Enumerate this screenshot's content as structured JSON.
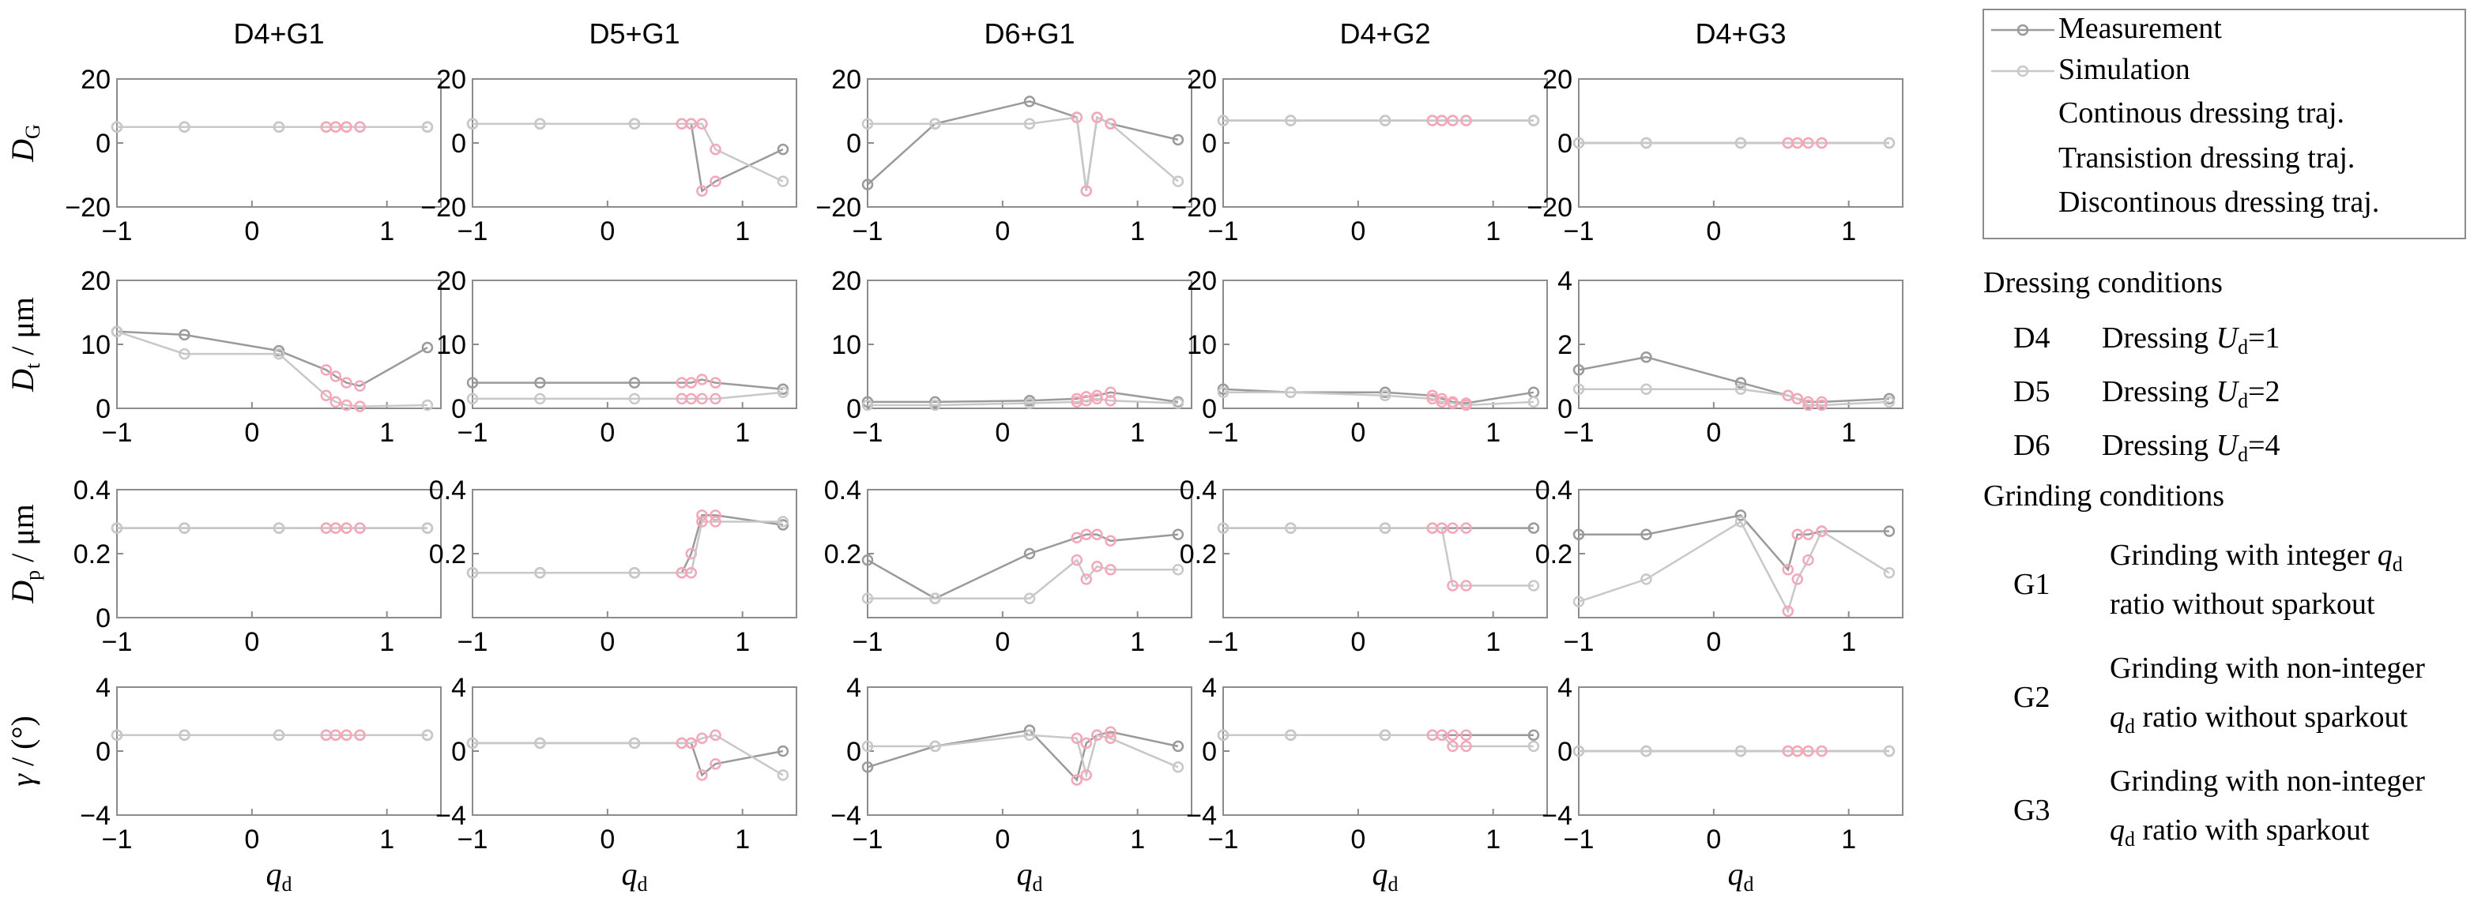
{
  "colors": {
    "measurement": "#9a9a9a",
    "simulation": "#c8c8c8",
    "sim_marker": "#f4a7b9",
    "axis": "#8c8c8c"
  },
  "column_titles": [
    "D4+G1",
    "D5+G1",
    "D6+G1",
    "D4+G2",
    "D4+G3"
  ],
  "row_labels": [
    {
      "main": "D",
      "sub": "G",
      "unit": ""
    },
    {
      "main": "D",
      "sub": "t",
      "unit": " / μm"
    },
    {
      "main": "D",
      "sub": "p",
      "unit": " / μm"
    },
    {
      "main": "γ",
      "sub": "",
      "unit": " / (°)"
    }
  ],
  "xlabel": {
    "main": "q",
    "sub": "d"
  },
  "xticks": [
    -1,
    0,
    1
  ],
  "x_range": [
    -1,
    1.4
  ],
  "legend": {
    "items": [
      "Measurement",
      "Simulation",
      "Continous dressing traj.",
      "Transistion dressing traj.",
      "Discontinous dressing traj."
    ],
    "dressing_heading": "Dressing conditions",
    "dressing": [
      {
        "code": "D4",
        "text": "Dressing ",
        "var": "U",
        "sub": "d",
        "value": "=1"
      },
      {
        "code": "D5",
        "text": "Dressing ",
        "var": "U",
        "sub": "d",
        "value": "=2"
      },
      {
        "code": "D6",
        "text": "Dressing ",
        "var": "U",
        "sub": "d",
        "value": "=4"
      }
    ],
    "grinding_heading": "Grinding conditions",
    "grinding": [
      {
        "code": "G1",
        "line1": "Grinding with integer q",
        "line1_sub": "d",
        "line2": "ratio without sparkout",
        "line2_sub": ""
      },
      {
        "code": "G2",
        "line1": "Grinding with non-integer",
        "line1_sub": "",
        "line2": "q",
        "line2_sub": "d",
        "line2_rest": " ratio without sparkout"
      },
      {
        "code": "G3",
        "line1": "Grinding with non-integer",
        "line1_sub": "",
        "line2": "q",
        "line2_sub": "d",
        "line2_rest": " ratio with sparkout"
      }
    ]
  },
  "chart_data": [
    {
      "type": "line",
      "row": 0,
      "col": 0,
      "ylim": [
        -20,
        20
      ],
      "yticks": [
        -20,
        0,
        20
      ],
      "series": [
        {
          "x": [
            -1,
            -0.5,
            0.2,
            0.55,
            0.62,
            0.7,
            0.8,
            1.3
          ],
          "y": [
            5,
            5,
            5,
            5,
            5,
            5,
            5,
            5
          ]
        },
        {
          "x": [
            -1,
            -0.5,
            0.2,
            0.55,
            0.62,
            0.7,
            0.8,
            1.3
          ],
          "y": [
            5,
            5,
            5,
            5,
            5,
            5,
            5,
            5
          ]
        }
      ]
    },
    {
      "type": "line",
      "row": 0,
      "col": 1,
      "ylim": [
        -20,
        20
      ],
      "yticks": [
        -20,
        0,
        20
      ],
      "series": [
        {
          "x": [
            -1,
            -0.5,
            0.2,
            0.55,
            0.62,
            0.7,
            0.8,
            1.3
          ],
          "y": [
            6,
            6,
            6,
            6,
            6,
            -15,
            -12,
            -2
          ]
        },
        {
          "x": [
            -1,
            -0.5,
            0.2,
            0.55,
            0.62,
            0.7,
            0.8,
            1.3
          ],
          "y": [
            6,
            6,
            6,
            6,
            6,
            6,
            -2,
            -12
          ]
        }
      ]
    },
    {
      "type": "line",
      "row": 0,
      "col": 2,
      "ylim": [
        -20,
        20
      ],
      "yticks": [
        -20,
        0,
        20
      ],
      "series": [
        {
          "x": [
            -1,
            -0.5,
            0.2,
            0.55,
            0.62,
            0.7,
            0.8,
            1.3
          ],
          "y": [
            -13,
            6,
            13,
            8,
            -15,
            8,
            6,
            1
          ]
        },
        {
          "x": [
            -1,
            -0.5,
            0.2,
            0.55,
            0.62,
            0.7,
            0.8,
            1.3
          ],
          "y": [
            6,
            6,
            6,
            8,
            -15,
            8,
            6,
            -12
          ]
        }
      ]
    },
    {
      "type": "line",
      "row": 0,
      "col": 3,
      "ylim": [
        -20,
        20
      ],
      "yticks": [
        -20,
        0,
        20
      ],
      "series": [
        {
          "x": [
            -1,
            -0.5,
            0.2,
            0.55,
            0.62,
            0.7,
            0.8,
            1.3
          ],
          "y": [
            7,
            7,
            7,
            7,
            7,
            7,
            7,
            7
          ]
        },
        {
          "x": [
            -1,
            -0.5,
            0.2,
            0.55,
            0.62,
            0.7,
            0.8,
            1.3
          ],
          "y": [
            7,
            7,
            7,
            7,
            7,
            7,
            7,
            7
          ]
        }
      ]
    },
    {
      "type": "line",
      "row": 0,
      "col": 4,
      "ylim": [
        -20,
        20
      ],
      "yticks": [
        -20,
        0,
        20
      ],
      "series": [
        {
          "x": [
            -1,
            -0.5,
            0.2,
            0.55,
            0.62,
            0.7,
            0.8,
            1.3
          ],
          "y": [
            0,
            0,
            0,
            0,
            0,
            0,
            0,
            0
          ]
        },
        {
          "x": [
            -1,
            -0.5,
            0.2,
            0.55,
            0.62,
            0.7,
            0.8,
            1.3
          ],
          "y": [
            0,
            0,
            0,
            0,
            0,
            0,
            0,
            0
          ]
        }
      ]
    },
    {
      "type": "line",
      "row": 1,
      "col": 0,
      "ylim": [
        0,
        20
      ],
      "yticks": [
        0,
        10,
        20
      ],
      "series": [
        {
          "x": [
            -1,
            -0.5,
            0.2,
            0.55,
            0.62,
            0.7,
            0.8,
            1.3
          ],
          "y": [
            12,
            11.5,
            9,
            6,
            5,
            4,
            3.5,
            9.5
          ]
        },
        {
          "x": [
            -1,
            -0.5,
            0.2,
            0.55,
            0.62,
            0.7,
            0.8,
            1.3
          ],
          "y": [
            12,
            8.5,
            8.5,
            2,
            1,
            0.5,
            0.3,
            0.5
          ]
        }
      ]
    },
    {
      "type": "line",
      "row": 1,
      "col": 1,
      "ylim": [
        0,
        20
      ],
      "yticks": [
        0,
        10,
        20
      ],
      "series": [
        {
          "x": [
            -1,
            -0.5,
            0.2,
            0.55,
            0.62,
            0.7,
            0.8,
            1.3
          ],
          "y": [
            4,
            4,
            4,
            4,
            4,
            4.5,
            4,
            3
          ]
        },
        {
          "x": [
            -1,
            -0.5,
            0.2,
            0.55,
            0.62,
            0.7,
            0.8,
            1.3
          ],
          "y": [
            1.5,
            1.5,
            1.5,
            1.5,
            1.5,
            1.5,
            1.5,
            2.5
          ]
        }
      ]
    },
    {
      "type": "line",
      "row": 1,
      "col": 2,
      "ylim": [
        0,
        20
      ],
      "yticks": [
        0,
        10,
        20
      ],
      "series": [
        {
          "x": [
            -1,
            -0.5,
            0.2,
            0.55,
            0.62,
            0.7,
            0.8,
            1.3
          ],
          "y": [
            1,
            1,
            1.2,
            1.5,
            1.8,
            2,
            2.5,
            1
          ]
        },
        {
          "x": [
            -1,
            -0.5,
            0.2,
            0.55,
            0.62,
            0.7,
            0.8,
            1.3
          ],
          "y": [
            0.5,
            0.5,
            0.8,
            1,
            1.2,
            1.5,
            1.2,
            0.8
          ]
        }
      ]
    },
    {
      "type": "line",
      "row": 1,
      "col": 3,
      "ylim": [
        0,
        20
      ],
      "yticks": [
        0,
        10,
        20
      ],
      "series": [
        {
          "x": [
            -1,
            -0.5,
            0.2,
            0.55,
            0.62,
            0.7,
            0.8,
            1.3
          ],
          "y": [
            3,
            2.5,
            2.5,
            2,
            1.5,
            1,
            0.8,
            2.5
          ]
        },
        {
          "x": [
            -1,
            -0.5,
            0.2,
            0.55,
            0.62,
            0.7,
            0.8,
            1.3
          ],
          "y": [
            2.5,
            2.5,
            2,
            1.5,
            1,
            0.8,
            0.5,
            1
          ]
        }
      ]
    },
    {
      "type": "line",
      "row": 1,
      "col": 4,
      "ylim": [
        0,
        4
      ],
      "yticks": [
        0,
        2,
        4
      ],
      "series": [
        {
          "x": [
            -1,
            -0.5,
            0.2,
            0.55,
            0.62,
            0.7,
            0.8,
            1.3
          ],
          "y": [
            1.2,
            1.6,
            0.8,
            0.4,
            0.3,
            0.2,
            0.2,
            0.3
          ]
        },
        {
          "x": [
            -1,
            -0.5,
            0.2,
            0.55,
            0.62,
            0.7,
            0.8,
            1.3
          ],
          "y": [
            0.6,
            0.6,
            0.6,
            0.4,
            0.3,
            0.1,
            0.1,
            0.2
          ]
        }
      ]
    },
    {
      "type": "line",
      "row": 2,
      "col": 0,
      "ylim": [
        0,
        0.4
      ],
      "yticks": [
        0,
        0.2,
        0.4
      ],
      "series": [
        {
          "x": [
            -1,
            -0.5,
            0.2,
            0.55,
            0.62,
            0.7,
            0.8,
            1.3
          ],
          "y": [
            0.28,
            0.28,
            0.28,
            0.28,
            0.28,
            0.28,
            0.28,
            0.28
          ]
        },
        {
          "x": [
            -1,
            -0.5,
            0.2,
            0.55,
            0.62,
            0.7,
            0.8,
            1.3
          ],
          "y": [
            0.28,
            0.28,
            0.28,
            0.28,
            0.28,
            0.28,
            0.28,
            0.28
          ]
        }
      ]
    },
    {
      "type": "line",
      "row": 2,
      "col": 1,
      "ylim": [
        0,
        0.4
      ],
      "yticks": [
        0.2,
        0.4
      ],
      "series": [
        {
          "x": [
            -1,
            -0.5,
            0.2,
            0.55,
            0.62,
            0.7,
            0.8,
            1.3
          ],
          "y": [
            0.14,
            0.14,
            0.14,
            0.14,
            0.2,
            0.32,
            0.32,
            0.29
          ]
        },
        {
          "x": [
            -1,
            -0.5,
            0.2,
            0.55,
            0.62,
            0.7,
            0.8,
            1.3
          ],
          "y": [
            0.14,
            0.14,
            0.14,
            0.14,
            0.14,
            0.3,
            0.3,
            0.3
          ]
        }
      ]
    },
    {
      "type": "line",
      "row": 2,
      "col": 2,
      "ylim": [
        0,
        0.4
      ],
      "yticks": [
        0.2,
        0.4
      ],
      "series": [
        {
          "x": [
            -1,
            -0.5,
            0.2,
            0.55,
            0.62,
            0.7,
            0.8,
            1.3
          ],
          "y": [
            0.18,
            0.06,
            0.2,
            0.25,
            0.26,
            0.26,
            0.24,
            0.26
          ]
        },
        {
          "x": [
            -1,
            -0.5,
            0.2,
            0.55,
            0.62,
            0.7,
            0.8,
            1.3
          ],
          "y": [
            0.06,
            0.06,
            0.06,
            0.18,
            0.12,
            0.16,
            0.15,
            0.15
          ]
        }
      ]
    },
    {
      "type": "line",
      "row": 2,
      "col": 3,
      "ylim": [
        0,
        0.4
      ],
      "yticks": [
        0.2,
        0.4
      ],
      "series": [
        {
          "x": [
            -1,
            -0.5,
            0.2,
            0.55,
            0.62,
            0.7,
            0.8,
            1.3
          ],
          "y": [
            0.28,
            0.28,
            0.28,
            0.28,
            0.28,
            0.28,
            0.28,
            0.28
          ]
        },
        {
          "x": [
            -1,
            -0.5,
            0.2,
            0.55,
            0.62,
            0.7,
            0.8,
            1.3
          ],
          "y": [
            0.28,
            0.28,
            0.28,
            0.28,
            0.28,
            0.1,
            0.1,
            0.1
          ]
        }
      ]
    },
    {
      "type": "line",
      "row": 2,
      "col": 4,
      "ylim": [
        0,
        0.4
      ],
      "yticks": [
        0.2,
        0.4
      ],
      "series": [
        {
          "x": [
            -1,
            -0.5,
            0.2,
            0.55,
            0.62,
            0.7,
            0.8,
            1.3
          ],
          "y": [
            0.26,
            0.26,
            0.32,
            0.15,
            0.26,
            0.26,
            0.27,
            0.27
          ]
        },
        {
          "x": [
            -1,
            -0.5,
            0.2,
            0.55,
            0.62,
            0.7,
            0.8,
            1.3
          ],
          "y": [
            0.05,
            0.12,
            0.3,
            0.02,
            0.12,
            0.18,
            0.27,
            0.14
          ]
        }
      ]
    },
    {
      "type": "line",
      "row": 3,
      "col": 0,
      "ylim": [
        -4,
        4
      ],
      "yticks": [
        -4,
        0,
        4
      ],
      "series": [
        {
          "x": [
            -1,
            -0.5,
            0.2,
            0.55,
            0.62,
            0.7,
            0.8,
            1.3
          ],
          "y": [
            1,
            1,
            1,
            1,
            1,
            1,
            1,
            1
          ]
        },
        {
          "x": [
            -1,
            -0.5,
            0.2,
            0.55,
            0.62,
            0.7,
            0.8,
            1.3
          ],
          "y": [
            1,
            1,
            1,
            1,
            1,
            1,
            1,
            1
          ]
        }
      ]
    },
    {
      "type": "line",
      "row": 3,
      "col": 1,
      "ylim": [
        -4,
        4
      ],
      "yticks": [
        -4,
        0,
        4
      ],
      "series": [
        {
          "x": [
            -1,
            -0.5,
            0.2,
            0.55,
            0.62,
            0.7,
            0.8,
            1.3
          ],
          "y": [
            0.5,
            0.5,
            0.5,
            0.5,
            0.5,
            -1.5,
            -0.8,
            0
          ]
        },
        {
          "x": [
            -1,
            -0.5,
            0.2,
            0.55,
            0.62,
            0.7,
            0.8,
            1.3
          ],
          "y": [
            0.5,
            0.5,
            0.5,
            0.5,
            0.5,
            0.8,
            1,
            -1.5
          ]
        }
      ]
    },
    {
      "type": "line",
      "row": 3,
      "col": 2,
      "ylim": [
        -4,
        4
      ],
      "yticks": [
        -4,
        0,
        4
      ],
      "series": [
        {
          "x": [
            -1,
            -0.5,
            0.2,
            0.55,
            0.62,
            0.7,
            0.8,
            1.3
          ],
          "y": [
            -1,
            0.3,
            1.3,
            -1.8,
            0.5,
            1,
            1.2,
            0.3
          ]
        },
        {
          "x": [
            -1,
            -0.5,
            0.2,
            0.55,
            0.62,
            0.7,
            0.8,
            1.3
          ],
          "y": [
            0.3,
            0.3,
            1,
            0.8,
            -1.5,
            1,
            0.8,
            -1
          ]
        }
      ]
    },
    {
      "type": "line",
      "row": 3,
      "col": 3,
      "ylim": [
        -4,
        4
      ],
      "yticks": [
        -4,
        0,
        4
      ],
      "series": [
        {
          "x": [
            -1,
            -0.5,
            0.2,
            0.55,
            0.62,
            0.7,
            0.8,
            1.3
          ],
          "y": [
            1,
            1,
            1,
            1,
            1,
            1,
            1,
            1
          ]
        },
        {
          "x": [
            -1,
            -0.5,
            0.2,
            0.55,
            0.62,
            0.7,
            0.8,
            1.3
          ],
          "y": [
            1,
            1,
            1,
            1,
            1,
            0.3,
            0.3,
            0.3
          ]
        }
      ]
    },
    {
      "type": "line",
      "row": 3,
      "col": 4,
      "ylim": [
        -4,
        4
      ],
      "yticks": [
        -4,
        0,
        4
      ],
      "series": [
        {
          "x": [
            -1,
            -0.5,
            0.2,
            0.55,
            0.62,
            0.7,
            0.8,
            1.3
          ],
          "y": [
            0,
            0,
            0,
            0,
            0,
            0,
            0,
            0
          ]
        },
        {
          "x": [
            -1,
            -0.5,
            0.2,
            0.55,
            0.62,
            0.7,
            0.8,
            1.3
          ],
          "y": [
            0,
            0,
            0,
            0,
            0,
            0,
            0,
            0
          ]
        }
      ]
    }
  ]
}
